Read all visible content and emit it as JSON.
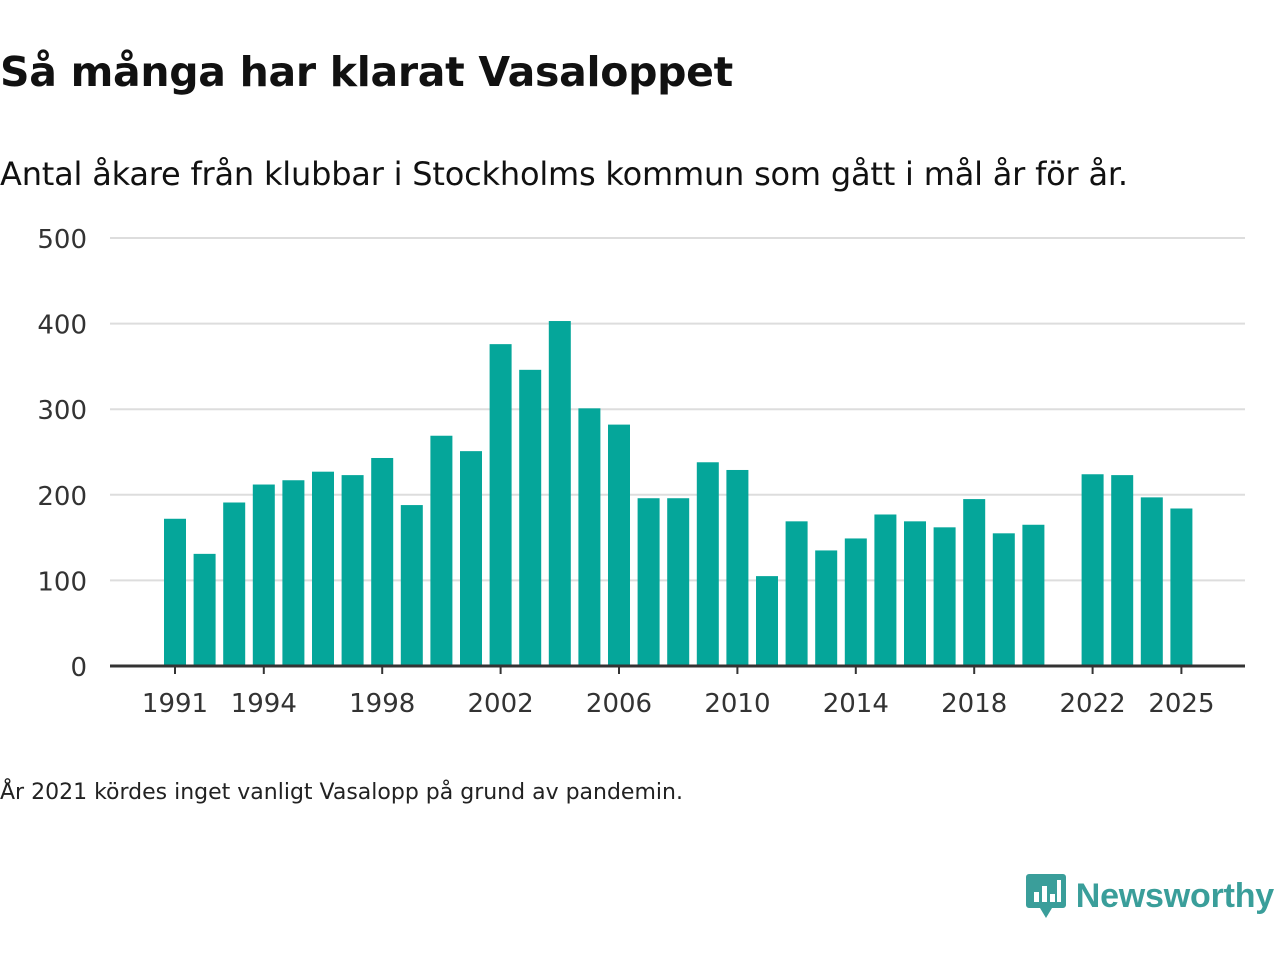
{
  "title": "Så många har klarat Vasaloppet",
  "subtitle": "Antal åkare från klubbar i Stockholms kommun som gått i mål år för år.",
  "footnote": "År 2021 kördes inget vanligt Vasalopp på grund av pandemin.",
  "brand": {
    "name": "Newsworthy",
    "color": "#3a9e9a"
  },
  "colors": {
    "bar": "#05a69a",
    "grid": "#dddddd",
    "axis": "#333333"
  },
  "chart_data": {
    "type": "bar",
    "title": "Så många har klarat Vasaloppet",
    "xlabel": "",
    "ylabel": "",
    "ylim": [
      0,
      500
    ],
    "yticks": [
      0,
      100,
      200,
      300,
      400,
      500
    ],
    "xticks": [
      1991,
      1994,
      1998,
      2002,
      2006,
      2010,
      2014,
      2018,
      2022,
      2025
    ],
    "x_range": [
      1991,
      2025
    ],
    "categories": [
      1991,
      1992,
      1993,
      1994,
      1995,
      1996,
      1997,
      1998,
      1999,
      2000,
      2001,
      2002,
      2003,
      2004,
      2005,
      2006,
      2007,
      2008,
      2009,
      2010,
      2011,
      2012,
      2013,
      2014,
      2015,
      2016,
      2017,
      2018,
      2019,
      2020,
      2022,
      2023,
      2024,
      2025
    ],
    "values": [
      172,
      131,
      191,
      212,
      217,
      227,
      223,
      243,
      188,
      269,
      251,
      376,
      346,
      403,
      301,
      282,
      196,
      196,
      238,
      229,
      105,
      169,
      135,
      149,
      177,
      169,
      162,
      195,
      155,
      165,
      224,
      223,
      197,
      184
    ],
    "grid": true
  }
}
